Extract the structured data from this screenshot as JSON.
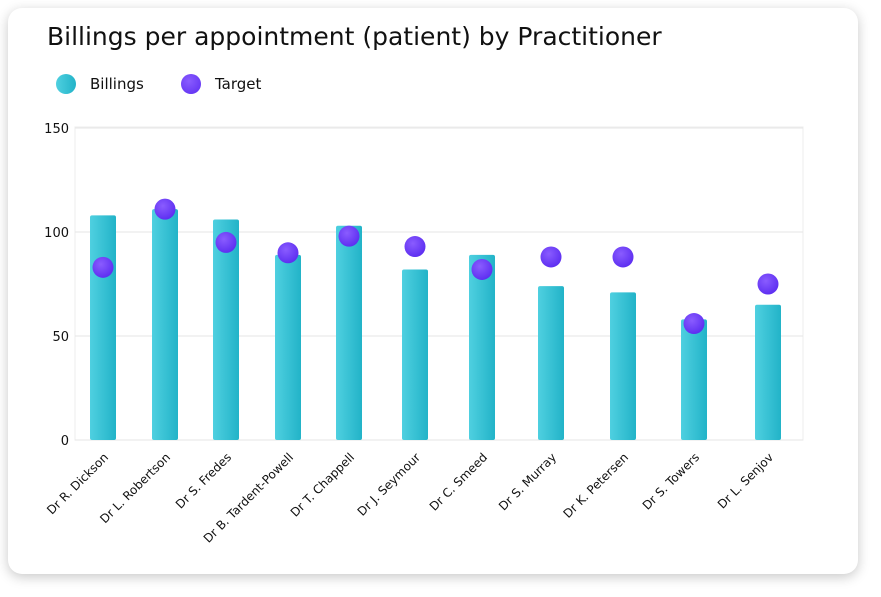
{
  "chart_data": {
    "type": "bar",
    "title": "Billings per appointment (patient) by Practitioner",
    "xlabel": "",
    "ylabel": "",
    "ylim": [
      0,
      150
    ],
    "yticks": [
      0,
      50,
      100,
      150
    ],
    "categories": [
      "Dr R. Dickson",
      "Dr L. Robertson",
      "Dr S. Fredes",
      "Dr B. Tardent-Powell",
      "Dr T. Chappell",
      "Dr J. Seymour",
      "Dr C. Smeed",
      "Dr S. Murray",
      "Dr K. Petersen",
      "Dr S. Towers",
      "Dr L. Senjov"
    ],
    "series": [
      {
        "name": "Billings",
        "kind": "bar",
        "values": [
          108,
          111,
          106,
          89,
          103,
          82,
          89,
          74,
          71,
          58,
          65
        ]
      },
      {
        "name": "Target",
        "kind": "marker",
        "values": [
          83,
          111,
          95,
          90,
          98,
          93,
          82,
          88,
          88,
          56,
          75
        ]
      }
    ],
    "legend_position": "top-left",
    "grid": true
  },
  "colors": {
    "bar_light": "#4fd0e0",
    "bar_dark": "#22b3c8",
    "marker_light": "#8a5cff",
    "marker_dark": "#5b2cf0",
    "grid": "#e6e6e6"
  },
  "icons": {
    "billings": "teal-circle-marker",
    "target": "purple-circle-marker"
  }
}
